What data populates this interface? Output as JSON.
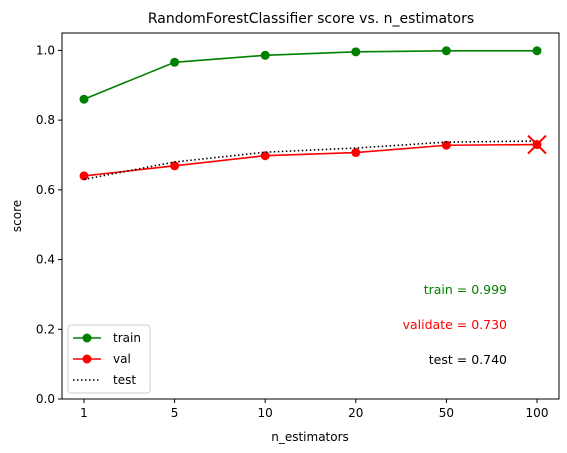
{
  "chart_data": {
    "type": "line",
    "title": "RandomForestClassifier score vs. n_estimators",
    "xlabel": "n_estimators",
    "ylabel": "score",
    "categories": [
      "1",
      "5",
      "10",
      "20",
      "50",
      "100"
    ],
    "ylim": [
      0.0,
      1.05
    ],
    "yticks": [
      "0.0",
      "0.2",
      "0.4",
      "0.6",
      "0.8",
      "1.0"
    ],
    "grid": false,
    "legend_position": "lower-left",
    "series": [
      {
        "name": "train",
        "color": "#008000",
        "style": "solid-marker",
        "values": [
          0.86,
          0.966,
          0.986,
          0.996,
          0.999,
          0.999
        ]
      },
      {
        "name": "val",
        "color": "#ff0000",
        "style": "solid-marker",
        "values": [
          0.64,
          0.669,
          0.698,
          0.707,
          0.728,
          0.73
        ]
      },
      {
        "name": "test",
        "color": "#000000",
        "style": "dotted",
        "values": [
          0.63,
          0.68,
          0.708,
          0.72,
          0.737,
          0.74
        ]
      }
    ],
    "highlight": {
      "series": "val",
      "index": 5,
      "marker": "x"
    },
    "annotations": [
      {
        "text": "train = 0.999",
        "color": "#008000"
      },
      {
        "text": "validate = 0.730",
        "color": "#ff0000"
      },
      {
        "text": "test = 0.740",
        "color": "#000000"
      }
    ]
  }
}
